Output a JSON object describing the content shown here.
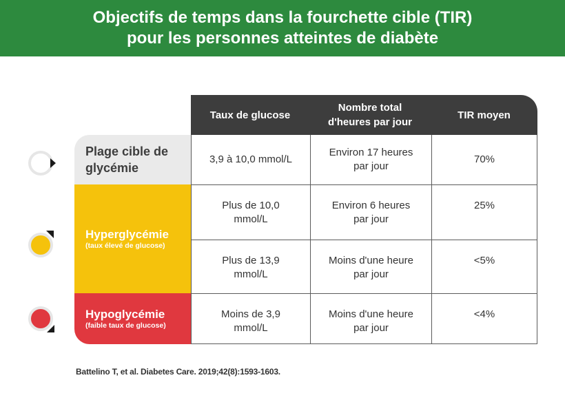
{
  "header": {
    "title_line1": "Objectifs de temps dans la fourchette cible (TIR)",
    "title_line2": "pour les personnes atteintes de diabète"
  },
  "table": {
    "columns": [
      "Taux de glucose",
      "Nombre total d'heures par jour",
      "TIR moyen"
    ],
    "categories": {
      "target": {
        "label": "Plage cible de glycémie"
      },
      "hyper": {
        "label": "Hyperglycémie",
        "sublabel": "(taux élevé de glucose)"
      },
      "hypo": {
        "label": "Hypoglycémie",
        "sublabel": "(faible taux de glucose)"
      }
    },
    "rows": [
      {
        "glucose": "3,9 à 10,0 mmol/L",
        "hours": "Environ 17 heures par jour",
        "tir": "70%"
      },
      {
        "glucose": "Plus de 10,0 mmol/L",
        "hours": "Environ 6 heures par jour",
        "tir": "25%"
      },
      {
        "glucose": "Plus de 13,9 mmol/L",
        "hours": "Moins d'une heure par jour",
        "tir": "<5%"
      },
      {
        "glucose": "Moins de 3,9 mmol/L",
        "hours": "Moins d'une heure par jour",
        "tir": "<4%"
      }
    ]
  },
  "icons": {
    "target": {
      "name": "target-range-circle-icon",
      "fill": "#ffffff",
      "ring": "#e6e6e6"
    },
    "hyper": {
      "name": "high-glucose-circle-icon",
      "fill": "#f5c20c",
      "ring": "#e6e6e6"
    },
    "hypo": {
      "name": "low-glucose-circle-icon",
      "fill": "#e0383f",
      "ring": "#e6e6e6"
    }
  },
  "colors": {
    "banner": "#2d8a3e",
    "header_row": "#3d3d3d",
    "target": "#eaeaea",
    "hyper": "#f5c20c",
    "hypo": "#e0383f"
  },
  "footer": {
    "reference": "Battelino T, et al. Diabetes Care. 2019;42(8):1593-1603."
  }
}
